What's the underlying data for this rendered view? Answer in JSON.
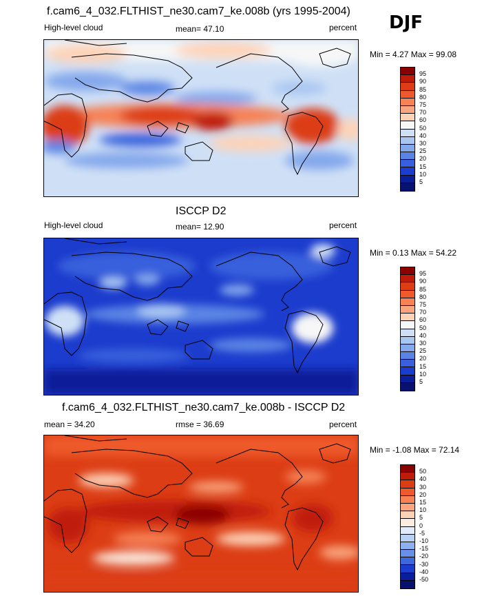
{
  "season": "DJF",
  "chart_data": [
    {
      "type": "heatmap",
      "title": "f.cam6_4_032.FLTHIST_ne30.cam7_ke.008b (yrs 1995-2004)",
      "left_label": "High-level cloud",
      "center_label": "mean=  47.10",
      "right_label": "percent",
      "minmax": "Min =   4.27 Max =  99.08",
      "min": 4.27,
      "max": 99.08,
      "mean": 47.1,
      "levels": [
        "95",
        "90",
        "85",
        "80",
        "75",
        "70",
        "60",
        "50",
        "40",
        "30",
        "25",
        "20",
        "15",
        "10",
        "5"
      ],
      "colors": [
        "#8b0000",
        "#c01a0a",
        "#dc3d14",
        "#ee5a2c",
        "#f68256",
        "#f9a57f",
        "#fdd3b8",
        "#f7f7f7",
        "#cfe0f6",
        "#a9c6f2",
        "#84a8ec",
        "#5a84e4",
        "#3860dc",
        "#1c3ccd",
        "#0a1e99",
        "#081070"
      ]
    },
    {
      "type": "heatmap",
      "title": "ISCCP D2",
      "left_label": "High-level cloud",
      "center_label": "mean=  12.90",
      "right_label": "percent",
      "minmax": "Min =   0.13 Max =  54.22",
      "min": 0.13,
      "max": 54.22,
      "mean": 12.9,
      "levels": [
        "95",
        "90",
        "85",
        "80",
        "75",
        "70",
        "60",
        "50",
        "40",
        "30",
        "25",
        "20",
        "15",
        "10",
        "5"
      ],
      "colors": [
        "#8b0000",
        "#c01a0a",
        "#dc3d14",
        "#ee5a2c",
        "#f68256",
        "#f9a57f",
        "#fdd3b8",
        "#f7f7f7",
        "#cfe0f6",
        "#a9c6f2",
        "#84a8ec",
        "#5a84e4",
        "#3860dc",
        "#1c3ccd",
        "#0a1e99",
        "#081070"
      ]
    },
    {
      "type": "heatmap",
      "title": "f.cam6_4_032.FLTHIST_ne30.cam7_ke.008b - ISCCP D2",
      "left_label": "mean =  34.20",
      "center_label": "rmse =   36.69",
      "right_label": "percent",
      "minmax": "Min =  -1.08 Max =  72.14",
      "min": -1.08,
      "max": 72.14,
      "mean": 34.2,
      "rmse": 36.69,
      "levels": [
        "50",
        "40",
        "30",
        "20",
        "15",
        "10",
        "5",
        "0",
        "-5",
        "-10",
        "-15",
        "-20",
        "-30",
        "-40",
        "-50"
      ],
      "colors": [
        "#8b0000",
        "#c01a0a",
        "#dc3d14",
        "#ee5a2c",
        "#f68256",
        "#f9a57f",
        "#fdd3b8",
        "#fbece2",
        "#e1ebfa",
        "#b8d0f4",
        "#8fb0ee",
        "#6890e6",
        "#3f68dc",
        "#1c3ccd",
        "#0a1e99",
        "#081070"
      ]
    }
  ]
}
